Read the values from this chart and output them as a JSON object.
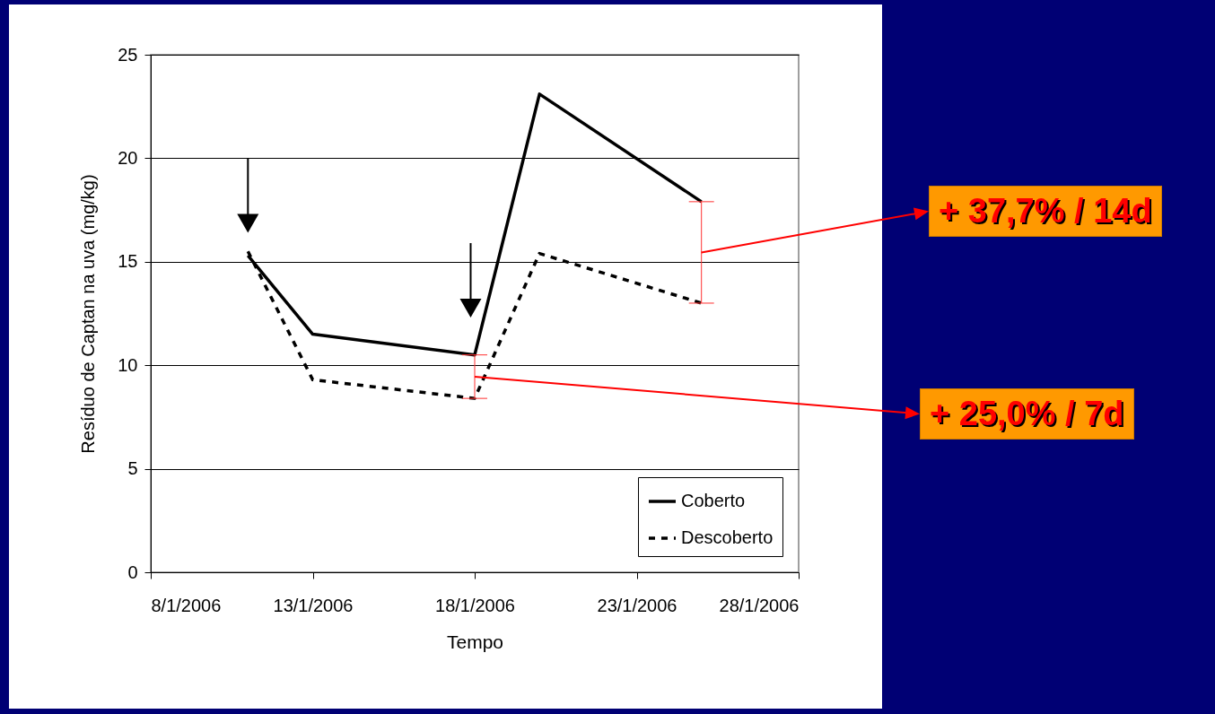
{
  "chart_data": {
    "type": "line",
    "xlabel": "Tempo",
    "ylabel": "Resíduo de Captan na uva (mg/kg)",
    "series": [
      {
        "name": "Coberto",
        "color": "#000000",
        "line_style": "solid",
        "x": [
          "2006-01-11",
          "2006-01-13",
          "2006-01-18",
          "2006-01-20",
          "2006-01-25"
        ],
        "values": [
          15.3,
          11.5,
          10.5,
          23.1,
          17.9
        ]
      },
      {
        "name": "Descoberto",
        "color": "#000000",
        "line_style": "dashed",
        "x": [
          "2006-01-11",
          "2006-01-13",
          "2006-01-18",
          "2006-01-20",
          "2006-01-25"
        ],
        "values": [
          15.5,
          9.3,
          8.4,
          15.4,
          13.0
        ]
      }
    ],
    "xlim": [
      "2006-01-08",
      "2006-01-28"
    ],
    "xticks": [
      {
        "value": "2006-01-08",
        "label": "8/1/2006"
      },
      {
        "value": "2006-01-13",
        "label": "13/1/2006"
      },
      {
        "value": "2006-01-18",
        "label": "18/1/2006"
      },
      {
        "value": "2006-01-23",
        "label": "23/1/2006"
      },
      {
        "value": "2006-01-28",
        "label": "28/1/2006"
      }
    ],
    "ylim": [
      0,
      25
    ],
    "yticks": [
      0,
      5,
      10,
      15,
      20,
      25
    ],
    "grid": "y",
    "legend": "bottom right",
    "marker": "none",
    "annotations": [
      "+ 37,7% / 14d",
      "+ 25,0% / 7d"
    ]
  }
}
